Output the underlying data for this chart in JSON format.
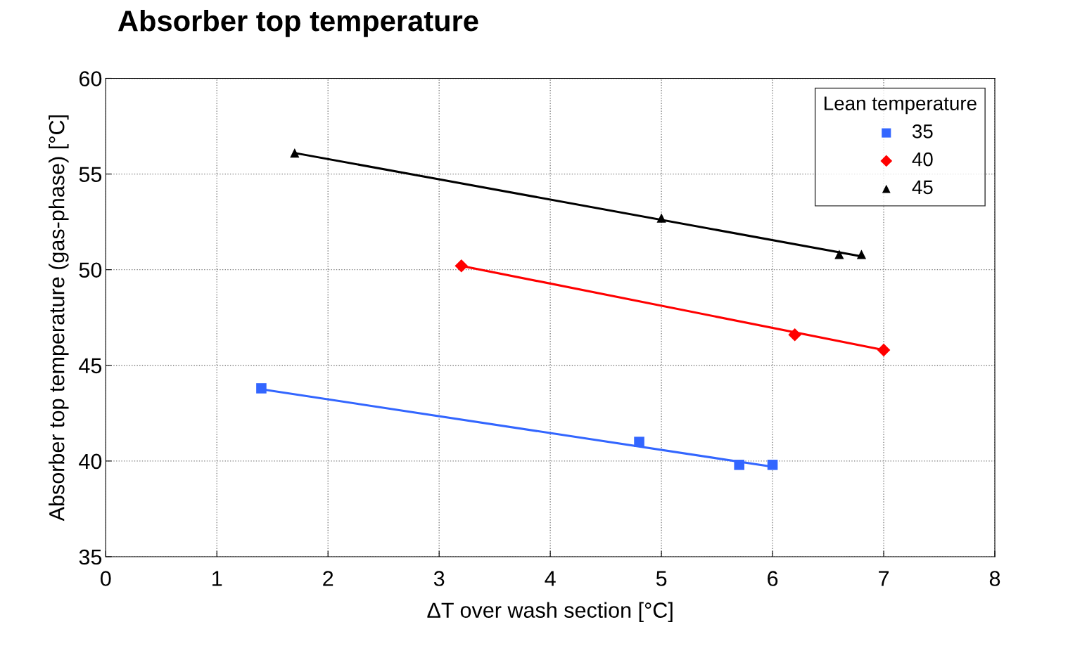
{
  "chart_data": {
    "type": "scatter",
    "title": "Absorber top temperature",
    "xlabel": "ΔT over wash section [°C]",
    "ylabel": "Absorber top temperature (gas-phase) [°C]",
    "legend_title": "Lean temperature",
    "xlim": [
      0,
      8
    ],
    "xticks": [
      0,
      1,
      2,
      3,
      4,
      5,
      6,
      7,
      8
    ],
    "ylim": [
      35,
      60
    ],
    "yticks": [
      35,
      40,
      45,
      50,
      55,
      60
    ],
    "grid": true,
    "legend": "top right",
    "series": [
      {
        "name": "35",
        "color": "#3366ff",
        "marker": "square",
        "x": [
          1.4,
          4.8,
          5.7,
          6.0
        ],
        "values": [
          43.8,
          41.0,
          39.8,
          39.8
        ]
      },
      {
        "name": "40",
        "color": "#ff0000",
        "marker": "diamond",
        "x": [
          3.2,
          6.2,
          7.0
        ],
        "values": [
          50.2,
          46.6,
          45.8
        ]
      },
      {
        "name": "45",
        "color": "#000000",
        "marker": "triangle",
        "x": [
          1.7,
          5.0,
          6.6,
          6.8
        ],
        "values": [
          56.1,
          52.7,
          50.8,
          50.8
        ]
      },
      {
        "type": "line",
        "color": "#3366ff",
        "x": [
          1.4,
          6.0
        ],
        "values": [
          43.75,
          39.7
        ]
      },
      {
        "type": "line",
        "color": "#ff0000",
        "x": [
          3.2,
          7.0
        ],
        "values": [
          50.2,
          45.8
        ]
      },
      {
        "type": "line",
        "color": "#000000",
        "x": [
          1.7,
          6.8
        ],
        "values": [
          56.1,
          50.7
        ]
      }
    ]
  }
}
